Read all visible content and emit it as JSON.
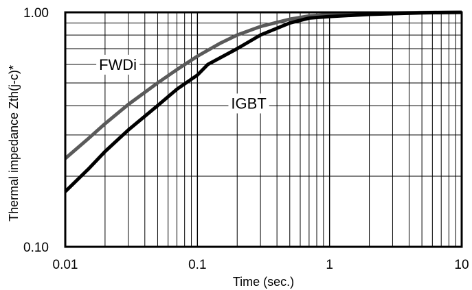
{
  "chart_data": {
    "type": "line",
    "xlabel": "Time (sec.)",
    "ylabel": "Thermal impedance Zth(j-c)*",
    "xscale": "log",
    "yscale": "log",
    "xlim": [
      0.01,
      10
    ],
    "ylim": [
      0.1,
      1.0
    ],
    "grid": true,
    "x_ticks": [
      {
        "value": 0.01,
        "label": "0.01"
      },
      {
        "value": 0.1,
        "label": "0.1"
      },
      {
        "value": 1,
        "label": "1"
      },
      {
        "value": 10,
        "label": "10"
      }
    ],
    "y_ticks": [
      {
        "value": 0.1,
        "label": "0.10"
      },
      {
        "value": 1.0,
        "label": "1.00"
      }
    ],
    "series": [
      {
        "name": "FWDi",
        "color": "#5a5a5a",
        "points": [
          [
            0.01,
            0.238
          ],
          [
            0.015,
            0.29
          ],
          [
            0.02,
            0.335
          ],
          [
            0.03,
            0.405
          ],
          [
            0.05,
            0.5
          ],
          [
            0.07,
            0.57
          ],
          [
            0.1,
            0.65
          ],
          [
            0.15,
            0.74
          ],
          [
            0.2,
            0.8
          ],
          [
            0.3,
            0.87
          ],
          [
            0.5,
            0.935
          ],
          [
            0.7,
            0.965
          ],
          [
            1,
            0.978
          ],
          [
            2,
            0.99
          ],
          [
            5,
            0.997
          ],
          [
            10,
            1.0
          ]
        ]
      },
      {
        "name": "IGBT",
        "color": "#000000",
        "points": [
          [
            0.01,
            0.172
          ],
          [
            0.015,
            0.215
          ],
          [
            0.02,
            0.255
          ],
          [
            0.03,
            0.315
          ],
          [
            0.05,
            0.4
          ],
          [
            0.07,
            0.47
          ],
          [
            0.1,
            0.54
          ],
          [
            0.12,
            0.6
          ],
          [
            0.2,
            0.7
          ],
          [
            0.3,
            0.8
          ],
          [
            0.5,
            0.9
          ],
          [
            0.7,
            0.945
          ],
          [
            1,
            0.96
          ],
          [
            2,
            0.98
          ],
          [
            5,
            0.995
          ],
          [
            10,
            1.0
          ]
        ]
      }
    ],
    "annotations": [
      {
        "text": "FWDi",
        "x": 0.018,
        "y": 0.6
      },
      {
        "text": "IGBT",
        "x": 0.18,
        "y": 0.41
      }
    ]
  }
}
